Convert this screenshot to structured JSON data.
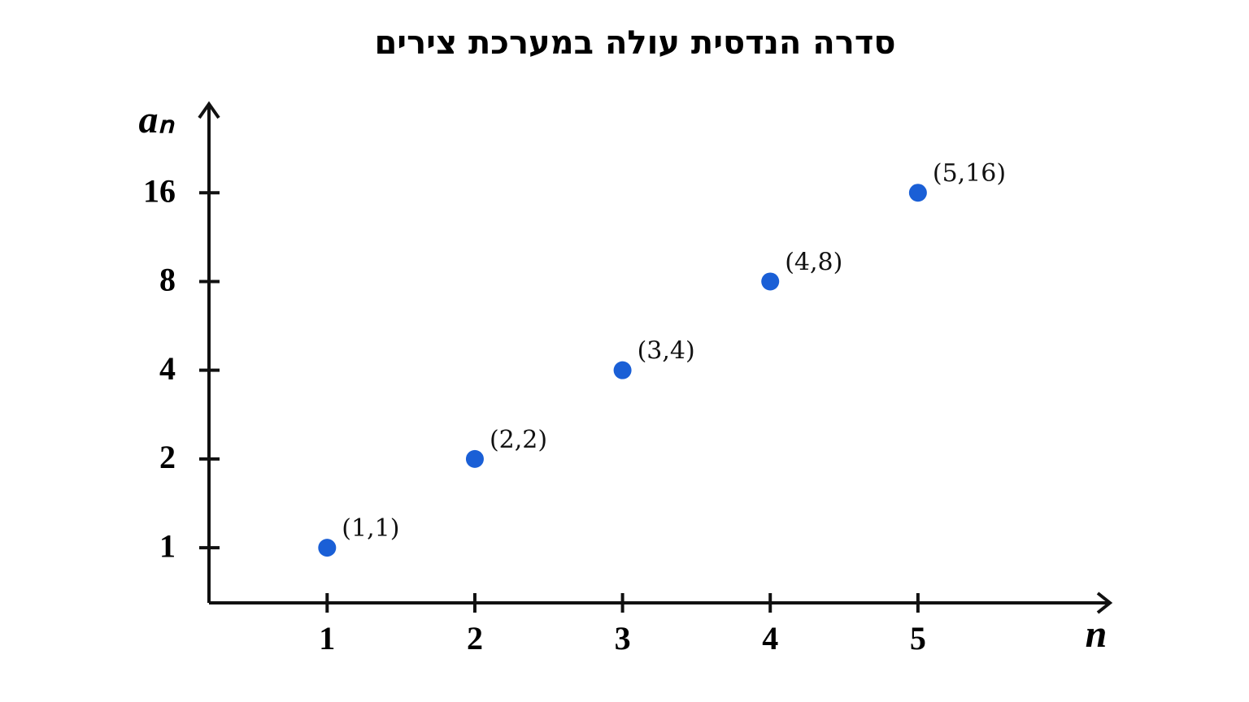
{
  "chart_data": {
    "type": "scatter",
    "title": "סדרה הנדסית עולה במערכת צירים",
    "x_label": "n",
    "y_label": "aₙ",
    "x": [
      1,
      2,
      3,
      4,
      5
    ],
    "series": [
      {
        "color": "#1a5fd6",
        "values": [
          1,
          2,
          4,
          8,
          16
        ],
        "value_labels": [
          "(1,1)",
          "(2,2)",
          "(3,4)",
          "(4,8)",
          "(5,16)"
        ]
      }
    ],
    "xlim": [
      0.2,
      6.3
    ],
    "xticks": [
      1,
      2,
      3,
      4,
      5
    ],
    "ylim": [
      0.65,
      32
    ],
    "yticks": [
      1,
      2,
      4,
      8,
      16
    ],
    "y_log_base": 2,
    "grid": false
  }
}
